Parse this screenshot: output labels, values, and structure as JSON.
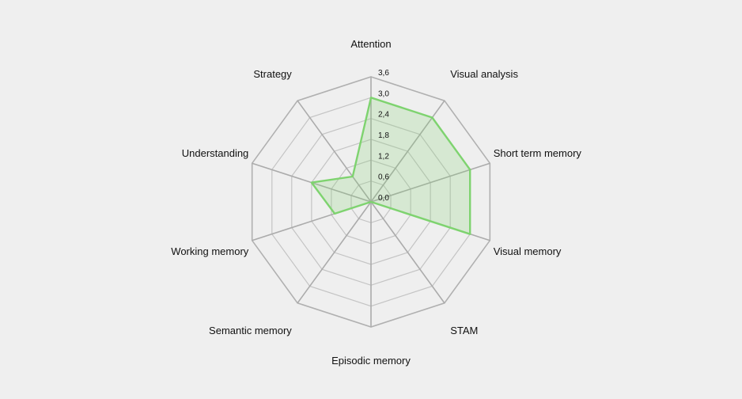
{
  "chart_data": {
    "type": "radar",
    "categories": [
      "Attention",
      "Visual analysis",
      "Short term memory",
      "Visual memory",
      "STAM",
      "Episodic memory",
      "Semantic memory",
      "Working memory",
      "Understanding",
      "Strategy"
    ],
    "series": [
      {
        "values": [
          3.0,
          3.0,
          3.0,
          3.0,
          0.0,
          0.0,
          0.0,
          1.1,
          1.8,
          0.9
        ],
        "color": "#7ed36f"
      }
    ],
    "ticks": [
      "0,0",
      "0,6",
      "1,2",
      "1,8",
      "2,4",
      "3,0",
      "3,6"
    ],
    "rmax": 3.6,
    "grid": true,
    "legend": "none"
  }
}
